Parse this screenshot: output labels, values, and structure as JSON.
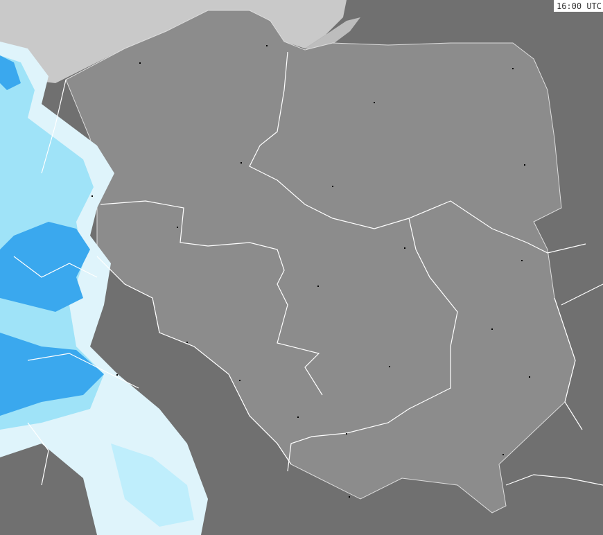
{
  "timestamp": "16:00 UTC",
  "colors": {
    "outside_land": "#707070",
    "poland_land": "#8c8c8c",
    "sea": "#c9c9c9",
    "border": "#ffffff",
    "precip_light": "#dff4fb",
    "precip_medium": "#9fe3f8",
    "precip_heavy": "#3aa8ee",
    "city": "#000000"
  },
  "precipitation_visible": true
}
